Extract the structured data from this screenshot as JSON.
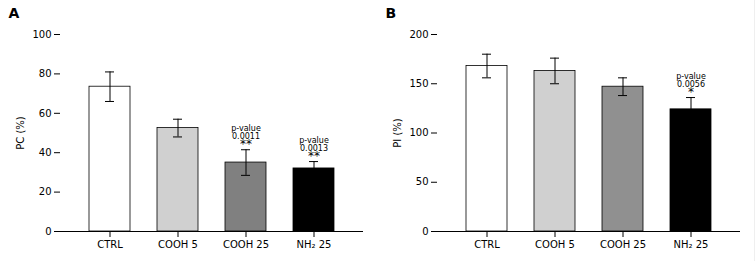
{
  "chart_data": [
    {
      "type": "bar",
      "title": "A",
      "categories": [
        "CTRL",
        "COOH 5",
        "COOH 25",
        "NH₂ 25"
      ],
      "values": [
        73.5,
        52.5,
        35.0,
        32.0
      ],
      "errors": [
        7.5,
        4.5,
        6.5,
        3.5
      ],
      "colors": [
        "#ffffff",
        "#d0d0d0",
        "#808080",
        "#000000"
      ],
      "ylabel": "PC (%)",
      "ylim": [
        0,
        100
      ],
      "yticks": [
        0,
        20,
        40,
        60,
        80,
        100
      ],
      "grid": false,
      "annotations": [
        {
          "category": "COOH 25",
          "text": "p-value\n0.0011"
        },
        {
          "category": "COOH 25",
          "text": "**"
        },
        {
          "category": "NH₂ 25",
          "text": "p-value\n0.0013"
        },
        {
          "category": "NH₂ 25",
          "text": "**"
        }
      ]
    },
    {
      "type": "bar",
      "title": "B",
      "categories": [
        "CTRL",
        "COOH 5",
        "COOH 25",
        "NH₂ 25"
      ],
      "values": [
        168.0,
        163.0,
        147.0,
        124.0
      ],
      "errors": [
        12.0,
        13.0,
        9.0,
        12.0
      ],
      "colors": [
        "#ffffff",
        "#d0d0d0",
        "#909090",
        "#000000"
      ],
      "ylabel": "PI (%)",
      "ylim": [
        0,
        200
      ],
      "yticks": [
        0,
        50,
        100,
        150,
        200
      ],
      "grid": false,
      "annotations": [
        {
          "category": "NH₂ 25",
          "text": "p-value\n0.0056"
        },
        {
          "category": "NH₂ 25",
          "text": "*"
        }
      ]
    }
  ]
}
